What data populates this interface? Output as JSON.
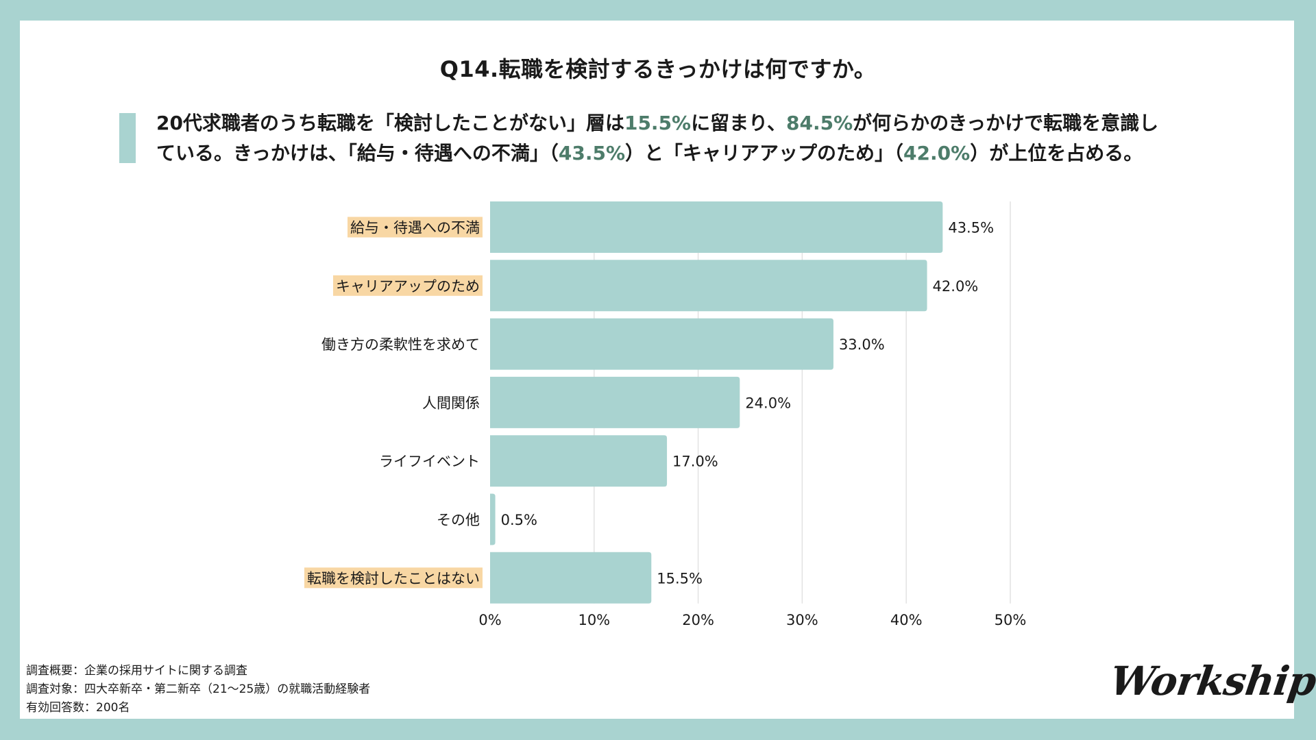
{
  "page": {
    "title": "Q14.転職を検討するきっかけは何ですか。",
    "summary": {
      "line1": [
        {
          "text": "20代求職者のうち転職を「検討したことがない」層は",
          "highlight": false
        },
        {
          "text": "15.5%",
          "highlight": true
        },
        {
          "text": "に留まり、",
          "highlight": false
        },
        {
          "text": "84.5%",
          "highlight": true
        },
        {
          "text": "が何らかのきっかけで転職を意識し",
          "highlight": false
        }
      ],
      "line2": [
        {
          "text": "ている。きっかけは、「給与・待遇への不満」（",
          "highlight": false
        },
        {
          "text": "43.5%",
          "highlight": true
        },
        {
          "text": "）と「キャリアアップのため」（",
          "highlight": false
        },
        {
          "text": "42.0%",
          "highlight": true
        },
        {
          "text": "）が上位を占める。",
          "highlight": false
        }
      ]
    },
    "footnote": [
      "調査概要：企業の採用サイトに関する調査",
      "調査対象：四大卒新卒・第二新卒（21〜25歳）の就職活動経験者",
      "有効回答数：200名"
    ],
    "logo": "Workship"
  },
  "colors": {
    "frame": "#a9d3d0",
    "bar": "#a9d3d0",
    "highlight_text": "#4d7c6a",
    "label_highlight_bg": "#f8d7a4",
    "gridline": "#e2e2e2"
  },
  "chart_data": {
    "type": "bar",
    "orientation": "horizontal",
    "title": "Q14.転職を検討するきっかけは何ですか。",
    "xlabel": "",
    "ylabel": "",
    "xlim": [
      0,
      50
    ],
    "x_ticks": [
      0,
      10,
      20,
      30,
      40,
      50
    ],
    "x_tick_labels": [
      "0%",
      "10%",
      "20%",
      "30%",
      "40%",
      "50%"
    ],
    "grid": true,
    "categories": [
      "給与・待遇への不満",
      "キャリアアップのため",
      "働き方の柔軟性を求めて",
      "人間関係",
      "ライフイベント",
      "その他",
      "転職を検討したことはない"
    ],
    "values": [
      43.5,
      42.0,
      33.0,
      24.0,
      17.0,
      0.5,
      15.5
    ],
    "value_labels": [
      "43.5%",
      "42.0%",
      "33.0%",
      "24.0%",
      "17.0%",
      "0.5%",
      "15.5%"
    ],
    "highlighted_categories": [
      true,
      true,
      false,
      false,
      false,
      false,
      true
    ]
  }
}
